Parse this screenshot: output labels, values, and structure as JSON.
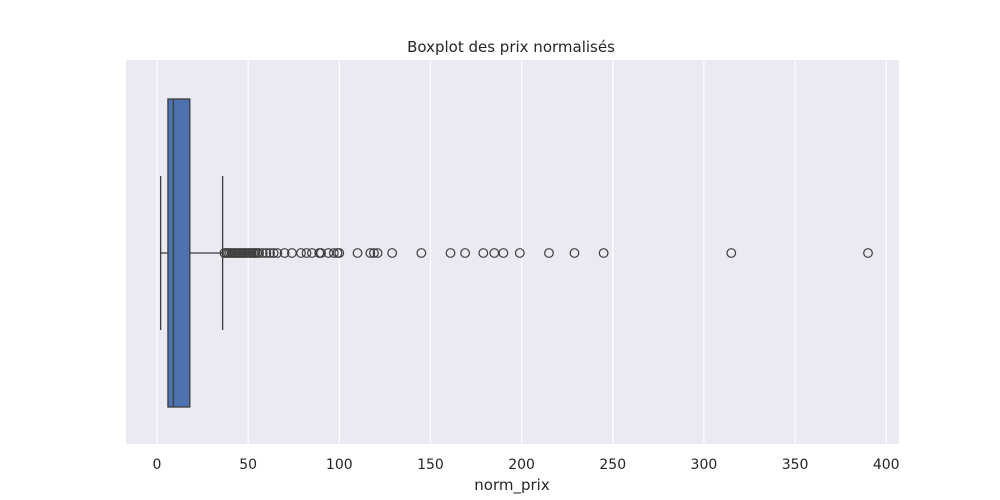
{
  "chart_data": {
    "type": "boxplot",
    "title": "Boxplot des prix normalisés",
    "xlabel": "norm_prix",
    "ylabel": "",
    "xlim": [
      -17,
      407
    ],
    "xticks": [
      0,
      50,
      100,
      150,
      200,
      250,
      300,
      350,
      400
    ],
    "xtick_labels": [
      "0",
      "50",
      "100",
      "150",
      "200",
      "250",
      "300",
      "350",
      "400"
    ],
    "grid": true,
    "box": {
      "whisker_low": 2,
      "q1": 6,
      "median": 9,
      "q3": 18,
      "whisker_high": 36
    },
    "outliers": [
      37,
      38,
      39,
      40,
      41,
      42,
      43,
      44,
      45,
      46,
      47,
      48,
      49,
      50,
      51,
      52,
      53,
      54,
      55,
      56,
      58,
      60,
      62,
      64,
      66,
      70,
      74,
      79,
      82,
      85,
      89,
      90,
      94,
      97,
      99,
      100,
      110,
      117,
      119,
      121,
      129,
      145,
      161,
      169,
      179,
      185,
      190,
      199,
      215,
      229,
      245,
      315,
      390
    ],
    "colors": {
      "box_fill": "#4c72b0",
      "line": "#3d3d3d",
      "plot_bg": "#eaeaf2",
      "grid": "#ffffff"
    }
  }
}
